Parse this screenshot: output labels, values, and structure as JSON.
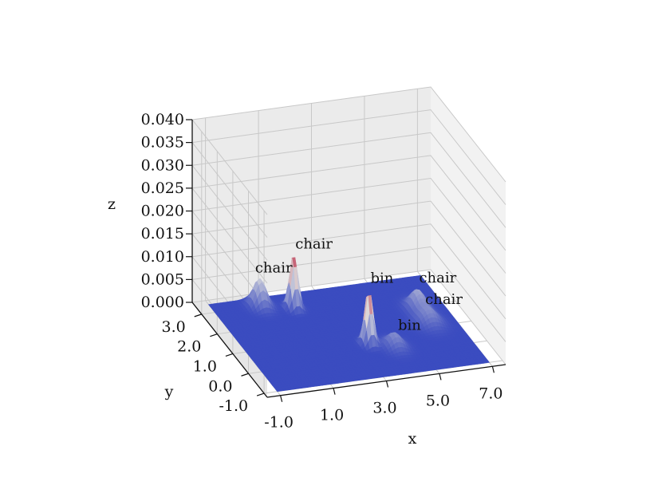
{
  "chart_data": {
    "type": "surface3d",
    "xlabel": "x",
    "ylabel": "y",
    "zlabel": "z",
    "xticks": [
      "-1.0",
      "1.0",
      "3.0",
      "5.0",
      "7.0"
    ],
    "yticks": [
      "-1.0",
      "0.0",
      "1.0",
      "2.0",
      "3.0"
    ],
    "zticks": [
      "0.000",
      "0.005",
      "0.010",
      "0.015",
      "0.020",
      "0.025",
      "0.030",
      "0.035",
      "0.040"
    ],
    "xlim": [
      -1.5,
      7.5
    ],
    "ylim": [
      -1.2,
      3.6
    ],
    "zlim": [
      0.0,
      0.04
    ],
    "grid": true,
    "colormap": "coolwarm",
    "colors": {
      "low": "#3b4cc0",
      "mid": "#dddddd",
      "high": "#b40426",
      "pane_left": "#e6e6e6",
      "pane_back": "#ebebeb",
      "pane_right": "#f2f2f2",
      "floor": "#e9e9e9"
    },
    "peaks": [
      {
        "label": "chair",
        "x": 0.7,
        "y": 3.0,
        "z": 0.006,
        "width": 0.22
      },
      {
        "label": "chair",
        "x": 1.8,
        "y": 2.7,
        "z": 0.012,
        "width": 0.14
      },
      {
        "label": "bin",
        "x": 3.4,
        "y": 0.6,
        "z": 0.012,
        "width": 0.14
      },
      {
        "label": "bin",
        "x": 4.2,
        "y": 0.3,
        "z": 0.003,
        "width": 0.25
      },
      {
        "label": "chair",
        "x": 6.0,
        "y": 1.9,
        "z": 0.004,
        "width": 0.25
      },
      {
        "label": "chair",
        "x": 6.0,
        "y": 1.2,
        "z": 0.003,
        "width": 0.3
      }
    ]
  }
}
